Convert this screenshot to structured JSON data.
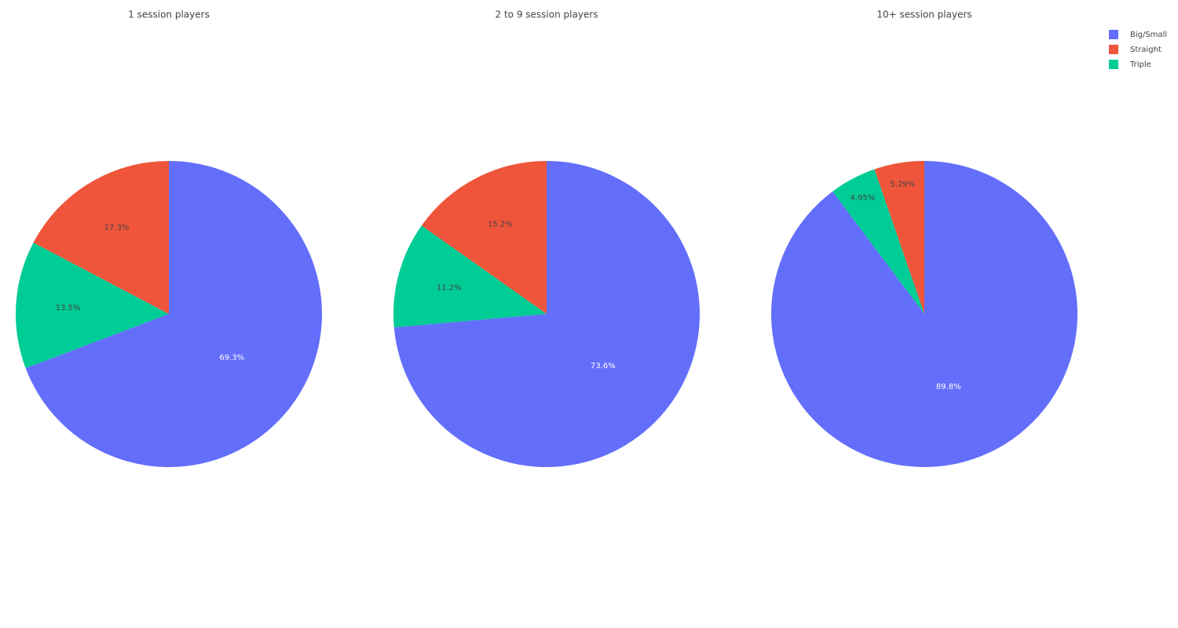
{
  "chart_data": {
    "type": "pie",
    "categories": [
      "Big/Small",
      "Straight",
      "Triple"
    ],
    "colors": [
      "#636efa",
      "#ef553b",
      "#00cc96"
    ],
    "series": [
      {
        "name": "1 session players",
        "values": [
          69.3,
          17.3,
          13.5
        ],
        "value_labels": [
          "69.3%",
          "17.3%",
          "13.5%"
        ]
      },
      {
        "name": "2 to 9 session players",
        "values": [
          73.6,
          15.2,
          11.2
        ],
        "value_labels": [
          "73.6%",
          "15.2%",
          "11.2%"
        ]
      },
      {
        "name": "10+ session players",
        "values": [
          89.8,
          5.29,
          4.95
        ],
        "value_labels": [
          "89.8%",
          "5.29%",
          "4.95%"
        ]
      }
    ],
    "legend": "top-right"
  }
}
